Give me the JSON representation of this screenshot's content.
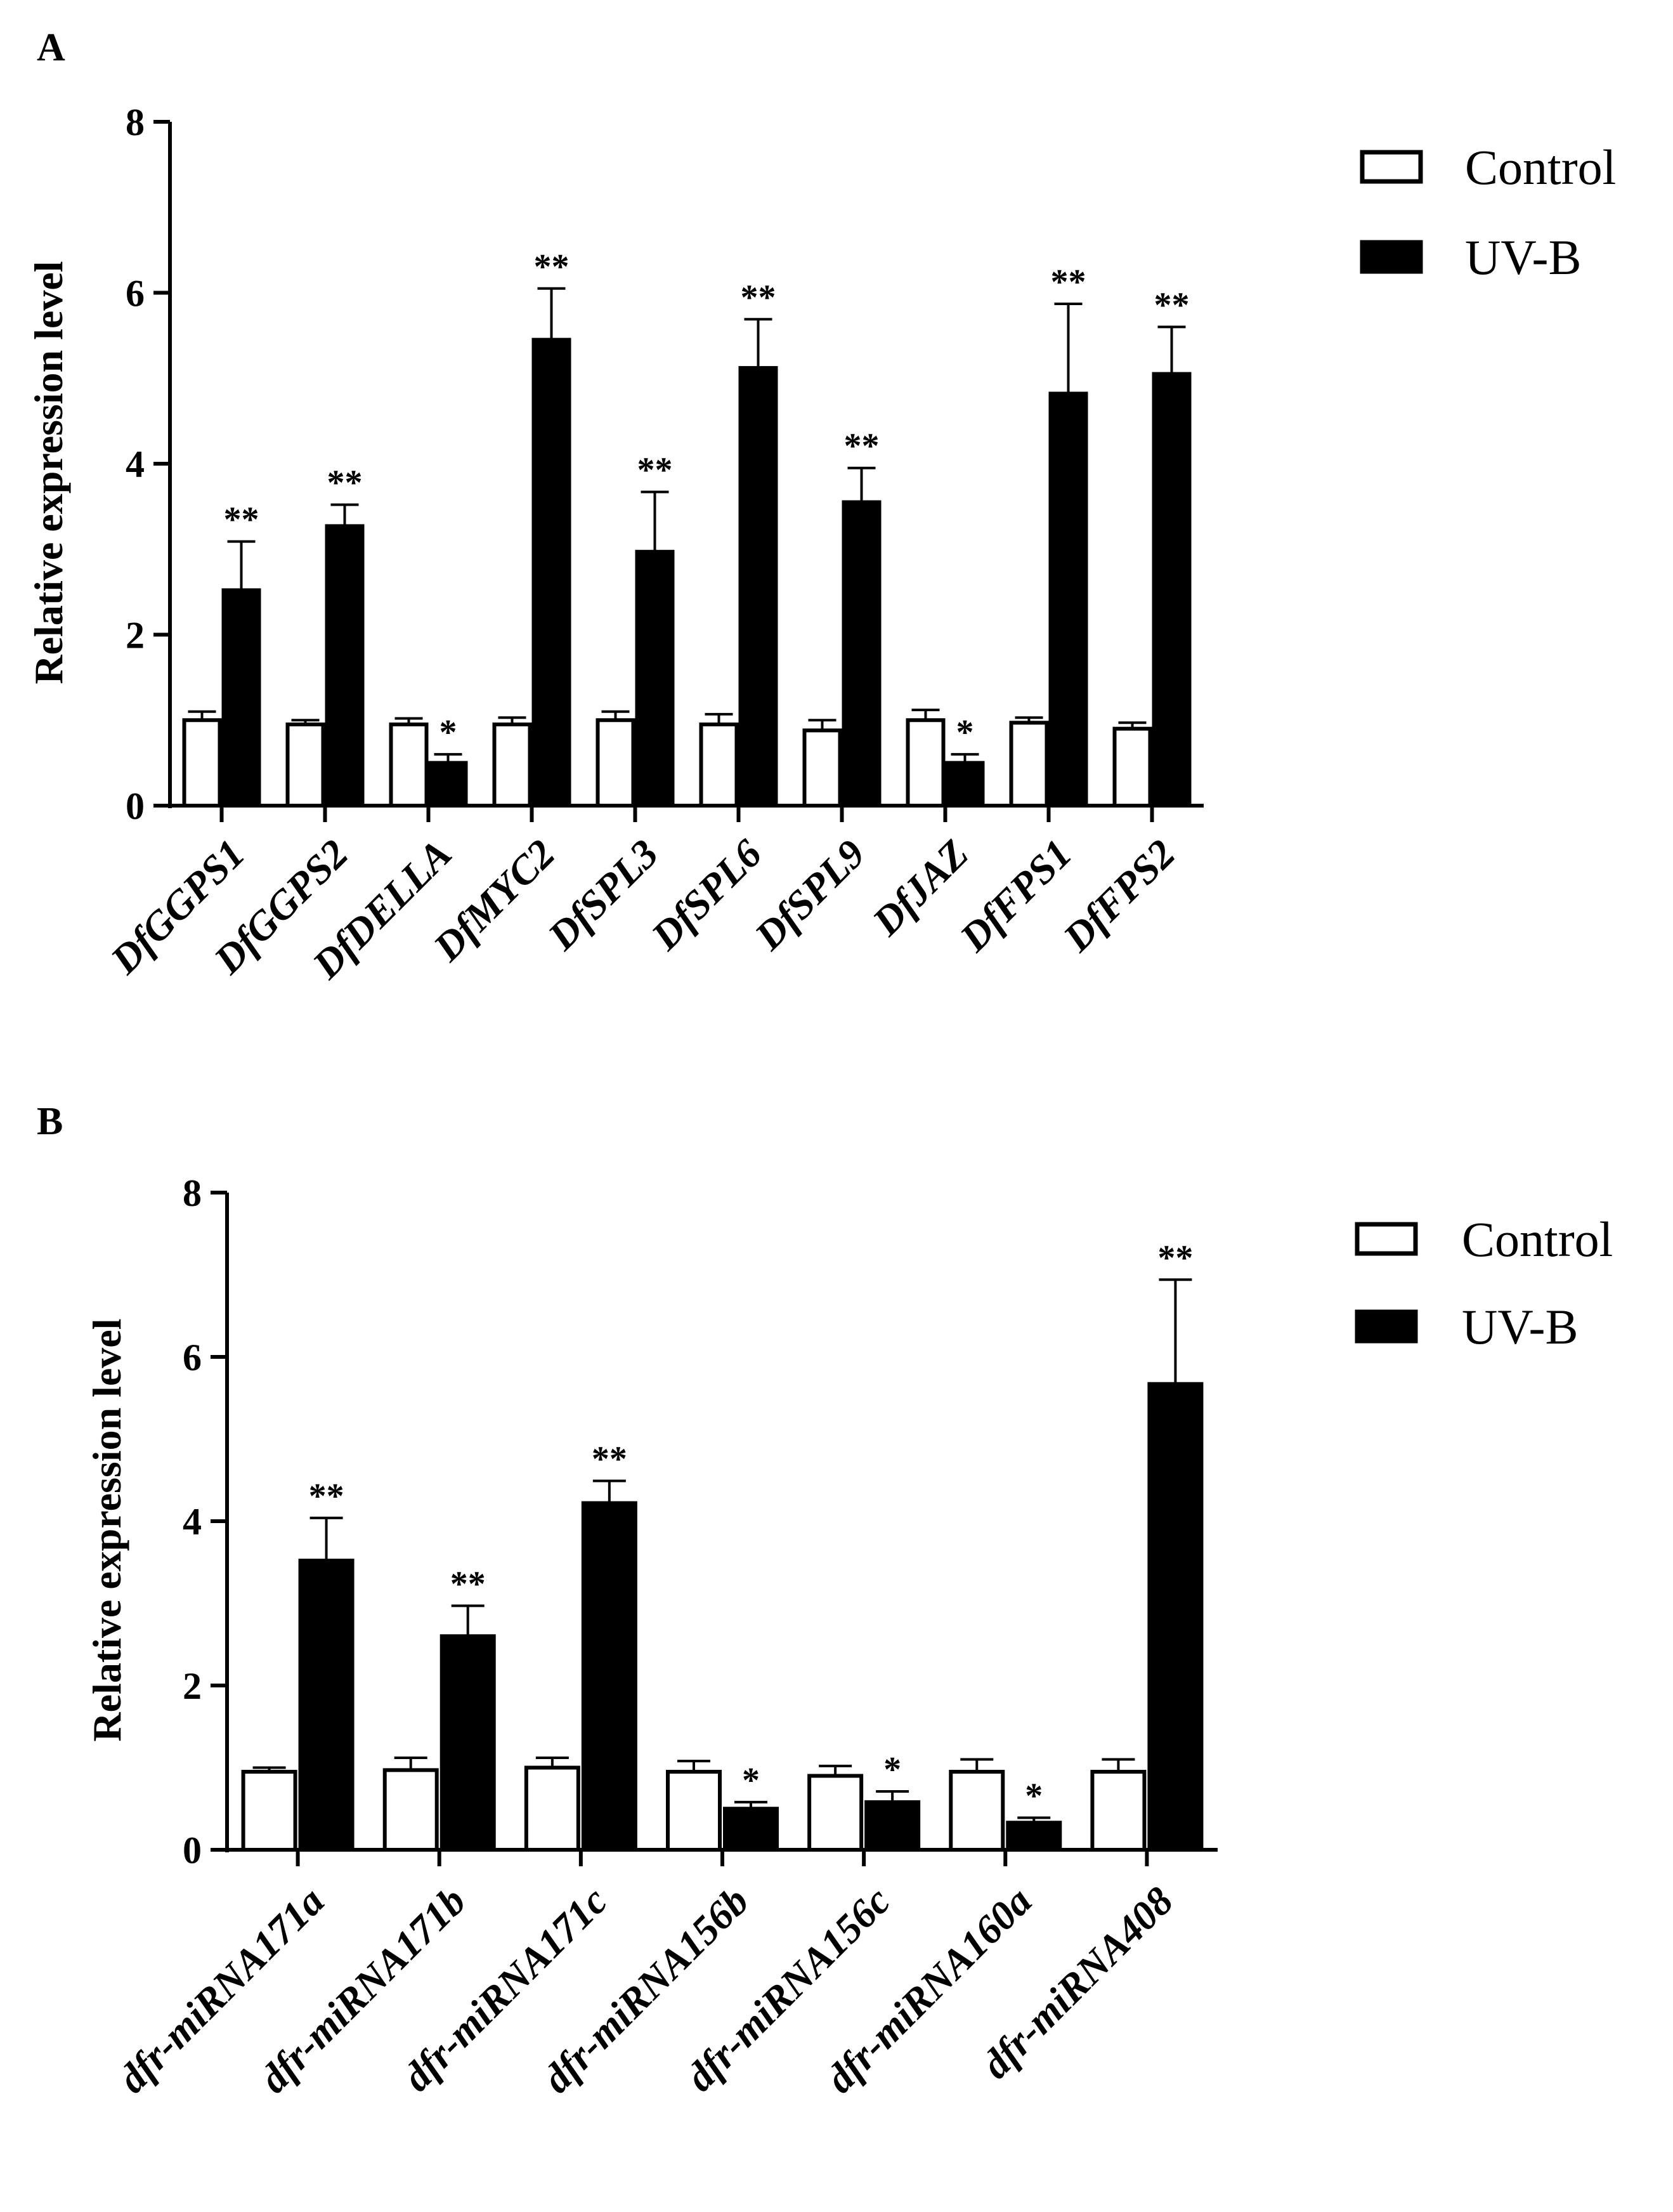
{
  "chart_data": [
    {
      "type": "bar",
      "panel_label": "A",
      "title": "",
      "xlabel": "",
      "ylabel": "Relative expression level",
      "ylim": [
        0,
        8
      ],
      "y_ticks": [
        "0",
        "2",
        "4",
        "6",
        "8"
      ],
      "legend": [
        "Control",
        "UV-B"
      ],
      "legend_position": "top-right",
      "categories": [
        "DfGGPS1",
        "DfGGPS2",
        "DfDELLA",
        "DfMYC2",
        "DfSPL3",
        "DfSPL6",
        "DfSPL9",
        "DfJAZ",
        "DfFPS1",
        "DfFPS2"
      ],
      "series": [
        {
          "name": "Control",
          "fill": "#ffffff",
          "values": [
            1.0,
            0.95,
            0.95,
            0.95,
            1.0,
            0.95,
            0.88,
            1.0,
            0.97,
            0.9
          ],
          "errors": [
            0.1,
            0.05,
            0.07,
            0.08,
            0.1,
            0.12,
            0.12,
            0.12,
            0.06,
            0.07
          ]
        },
        {
          "name": "UV-B",
          "fill": "#000000",
          "values": [
            2.52,
            3.27,
            0.5,
            5.45,
            2.97,
            5.12,
            3.55,
            0.5,
            4.82,
            5.05
          ],
          "errors": [
            0.57,
            0.25,
            0.1,
            0.6,
            0.7,
            0.57,
            0.4,
            0.1,
            1.05,
            0.55
          ]
        }
      ],
      "annotations": [
        "**",
        "**",
        "*",
        "**",
        "**",
        "**",
        "**",
        "*",
        "**",
        "**"
      ]
    },
    {
      "type": "bar",
      "panel_label": "B",
      "title": "",
      "xlabel": "",
      "ylabel": "Relative expression level",
      "ylim": [
        0,
        8
      ],
      "y_ticks": [
        "0",
        "2",
        "4",
        "6",
        "8"
      ],
      "legend": [
        "Control",
        "UV-B"
      ],
      "legend_position": "top-right",
      "categories": [
        "dfr-miRNA171a",
        "dfr-miRNA171b",
        "dfr-miRNA171c",
        "dfr-miRNA156b",
        "dfr-miRNA156c",
        "dfr-miRNA160a",
        "dfr-miRNA408"
      ],
      "series": [
        {
          "name": "Control",
          "fill": "#ffffff",
          "values": [
            0.95,
            0.97,
            1.0,
            0.95,
            0.9,
            0.95,
            0.95
          ],
          "errors": [
            0.05,
            0.15,
            0.12,
            0.13,
            0.12,
            0.15,
            0.15
          ]
        },
        {
          "name": "UV-B",
          "fill": "#000000",
          "values": [
            3.52,
            2.6,
            4.22,
            0.5,
            0.58,
            0.33,
            5.67
          ],
          "errors": [
            0.52,
            0.37,
            0.27,
            0.08,
            0.13,
            0.06,
            1.27
          ]
        }
      ],
      "annotations": [
        "**",
        "**",
        "**",
        "*",
        "*",
        "*",
        "**"
      ]
    }
  ]
}
